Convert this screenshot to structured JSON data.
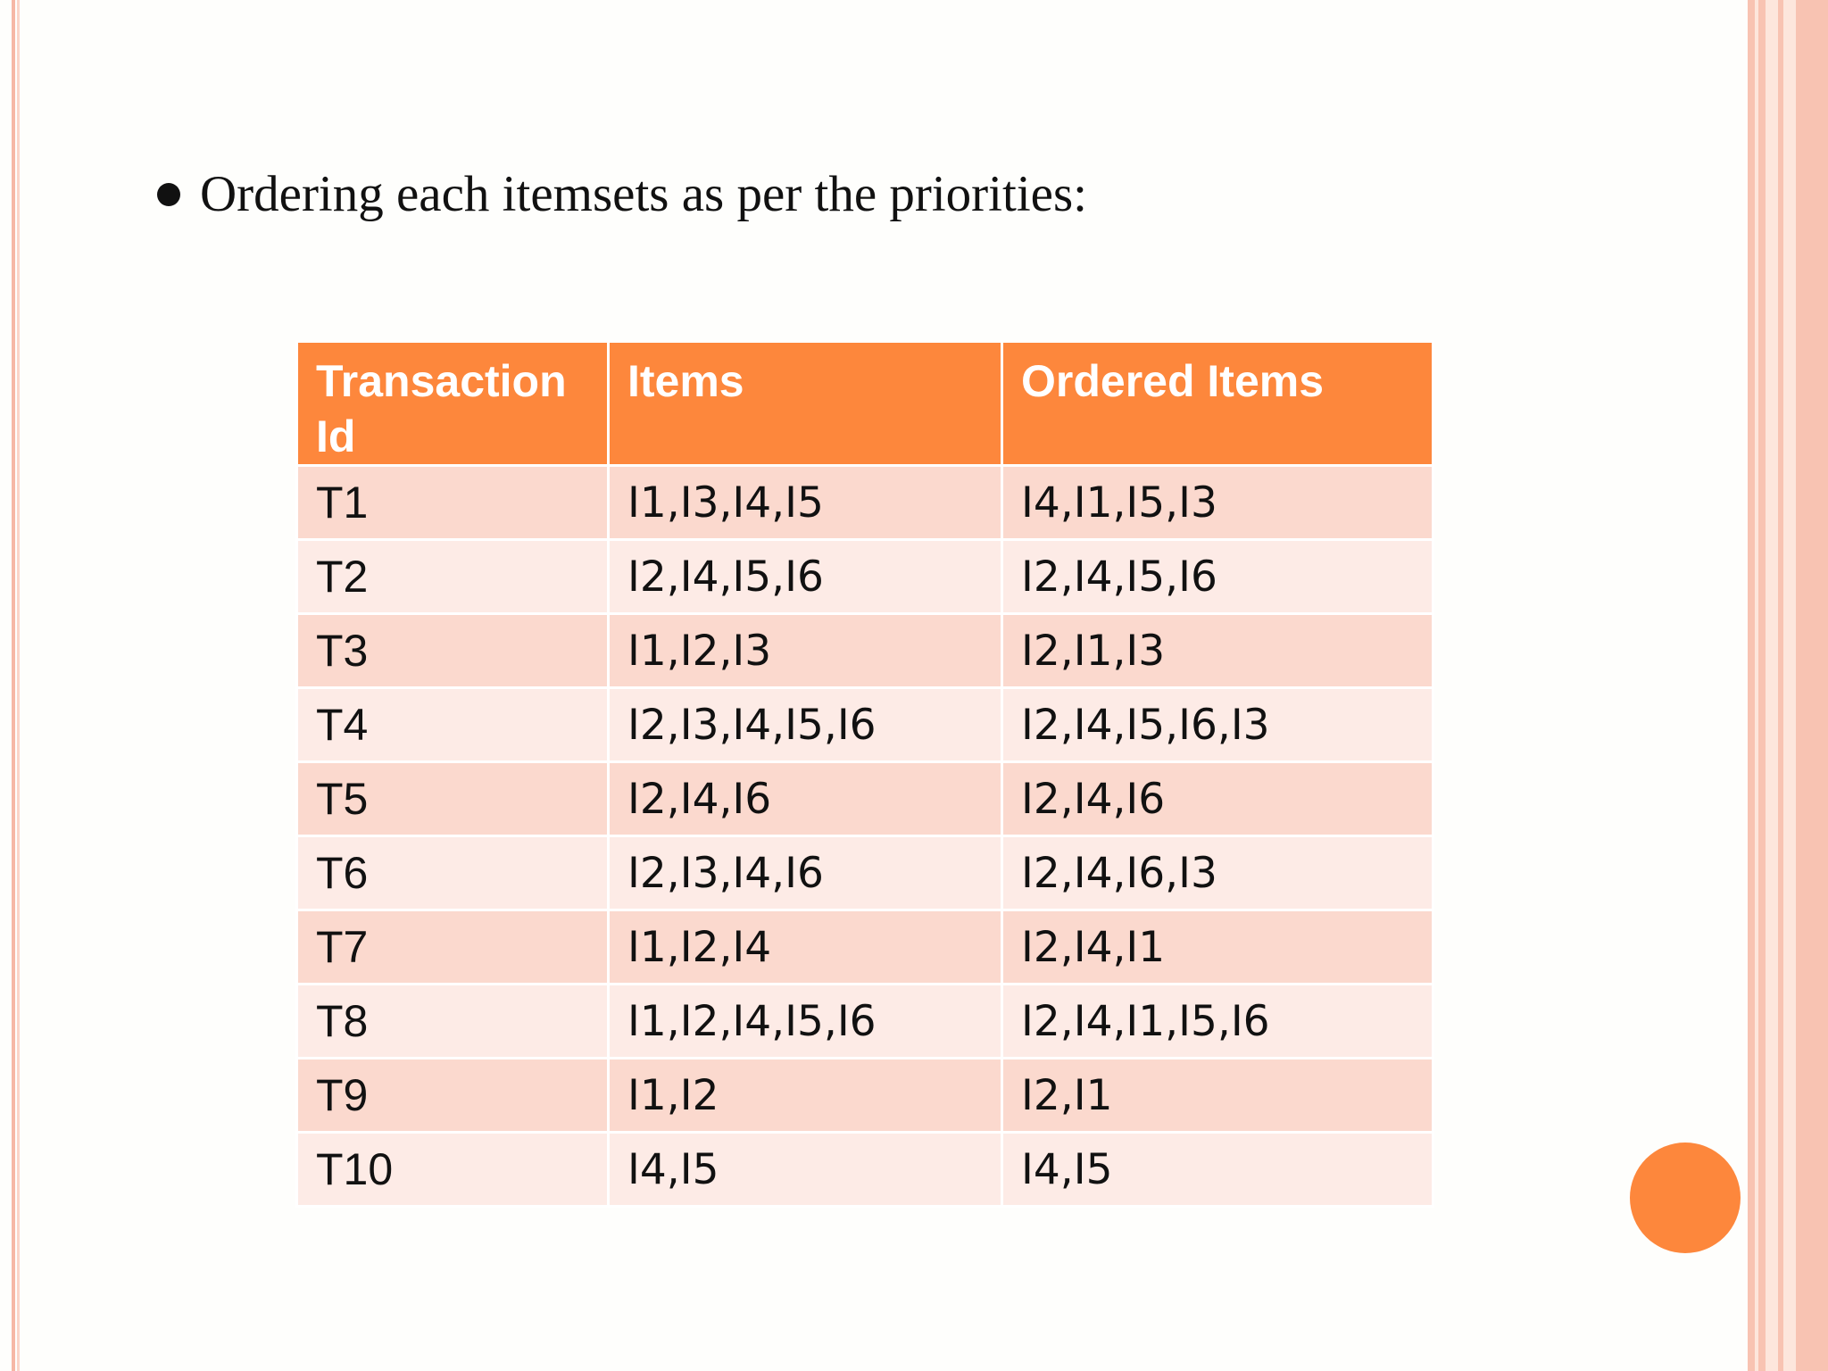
{
  "heading": {
    "text": "Ordering each itemsets as per the priorities:"
  },
  "table": {
    "headers": [
      "Transaction Id",
      "Items",
      "Ordered Items"
    ],
    "rows": [
      [
        "T1",
        "I1,I3,I4,I5",
        "I4,I1,I5,I3"
      ],
      [
        "T2",
        "I2,I4,I5,I6",
        "I2,I4,I5,I6"
      ],
      [
        "T3",
        "I1,I2,I3",
        "I2,I1,I3"
      ],
      [
        "T4",
        "I2,I3,I4,I5,I6",
        "I2,I4,I5,I6,I3"
      ],
      [
        "T5",
        "I2,I4,I6",
        "I2,I4,I6"
      ],
      [
        "T6",
        "I2,I3,I4,I6",
        "I2,I4,I6,I3"
      ],
      [
        "T7",
        "I1,I2,I4",
        "I2,I4,I1"
      ],
      [
        "T8",
        "I1,I2,I4,I5,I6",
        "I2,I4,I1,I5,I6"
      ],
      [
        "T9",
        "I1,I2",
        "I2,I1"
      ],
      [
        "T10",
        "I4,I5",
        "I4,I5"
      ]
    ]
  },
  "colors": {
    "header_bg": "#fd873c",
    "row_odd": "#fbd9ce",
    "row_even": "#fdebe6",
    "accent_circle": "#fd873c",
    "border_stripe": "#f8c3b2"
  }
}
